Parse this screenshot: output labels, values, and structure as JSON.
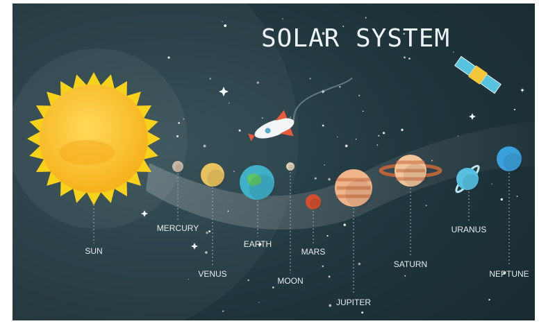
{
  "title": "SOLAR SYSTEM",
  "bodies": [
    {
      "label": "SUN"
    },
    {
      "label": "MERCURY"
    },
    {
      "label": "VENUS"
    },
    {
      "label": "EARTH"
    },
    {
      "label": "MOON"
    },
    {
      "label": "MARS"
    },
    {
      "label": "JUPITER"
    },
    {
      "label": "SATURN"
    },
    {
      "label": "URANUS"
    },
    {
      "label": "NEPTUNE"
    }
  ]
}
